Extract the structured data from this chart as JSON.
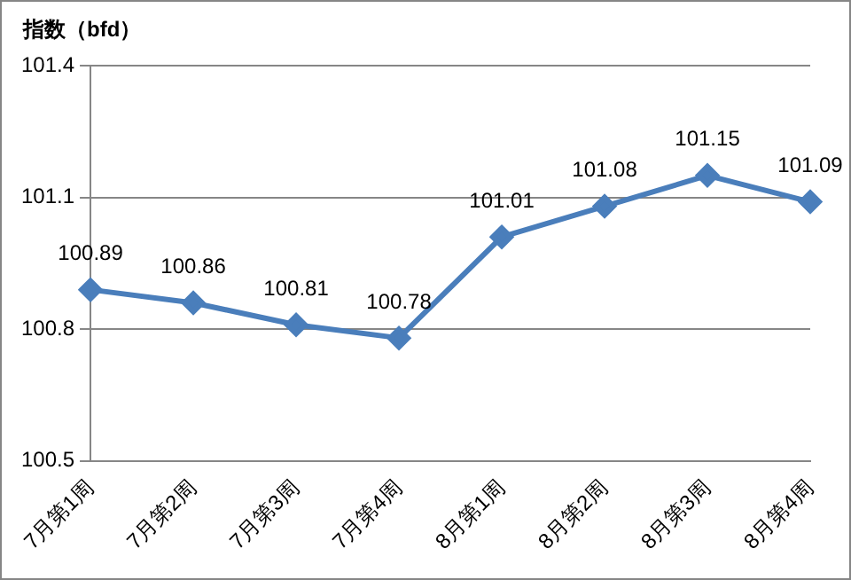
{
  "chart_data": {
    "type": "line",
    "ylabel": "指数（bfd）",
    "categories": [
      "7月第1周",
      "7月第2周",
      "7月第3周",
      "7月第4周",
      "8月第1周",
      "8月第2周",
      "8月第3周",
      "8月第4周"
    ],
    "series": [
      {
        "color": "#4a7ebb",
        "values": [
          100.89,
          100.86,
          100.81,
          100.78,
          101.01,
          101.08,
          101.15,
          101.09
        ]
      }
    ],
    "ylim": [
      100.5,
      101.4
    ],
    "yticks": [
      100.5,
      100.8,
      101.1,
      101.4
    ],
    "grid": "y",
    "legend": false,
    "marker": "diamond",
    "line_style": "solid",
    "data_labels": true
  }
}
